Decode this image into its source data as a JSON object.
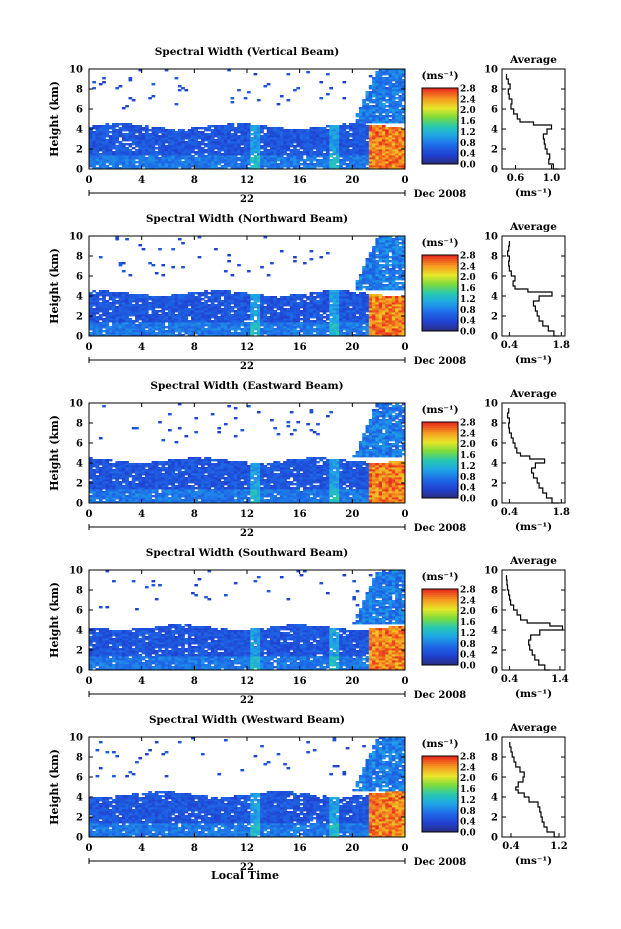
{
  "figure": {
    "xlabel": "Local Time",
    "colorbar_unit": "(ms⁻¹)",
    "colorbar_ticks": [
      "0.0",
      "0.4",
      "0.8",
      "1.2",
      "1.6",
      "2.0",
      "2.4",
      "2.8"
    ],
    "panels_heading": [
      "Spectral Width (Vertical Beam)",
      "Spectral Width (Northward Beam)",
      "Spectral Width (Eastward Beam)",
      "Spectral Width (Southward Beam)",
      "Spectral Width (Westward Beam)"
    ]
  },
  "chart_data": [
    {
      "type": "heatmap",
      "title": "Spectral Width (Vertical Beam)",
      "ylabel": "Height (km)",
      "xticks": [
        "0",
        "4",
        "8",
        "12",
        "16",
        "20",
        "0"
      ],
      "yticks": [
        "0",
        "2",
        "4",
        "6",
        "8",
        "10"
      ],
      "date_day": "22",
      "date_month": "Dec 2008",
      "xlim": [
        0,
        24
      ],
      "ylim": [
        0,
        10
      ],
      "cbar_range": [
        0.0,
        2.8
      ]
    },
    {
      "type": "line",
      "title": "Average",
      "ylabel": "",
      "xlabel": "(ms⁻¹)",
      "xticks": [
        "0.6",
        "1.0"
      ],
      "yticks": [
        "0",
        "2",
        "4",
        "6",
        "8",
        "10"
      ],
      "xlim": [
        0.45,
        1.15
      ],
      "ylim": [
        0,
        10
      ],
      "series": [
        {
          "x": [
            1.08,
            1.02,
            0.97,
            0.98,
            0.95,
            0.93,
            0.92,
            0.91,
            0.95,
            1.0,
            0.8,
            0.65,
            0.62,
            0.58,
            0.55,
            0.56,
            0.53,
            0.52,
            0.54,
            0.52,
            0.5
          ],
          "y": [
            0.0,
            0.5,
            1.0,
            1.5,
            2.0,
            2.5,
            3.0,
            3.5,
            4.0,
            4.4,
            4.7,
            5.0,
            5.5,
            6.0,
            6.5,
            7.0,
            7.5,
            8.0,
            8.5,
            9.0,
            9.5
          ]
        }
      ]
    },
    {
      "type": "heatmap",
      "title": "Spectral Width (Northward Beam)",
      "ylabel": "Height (km)",
      "xticks": [
        "0",
        "4",
        "8",
        "12",
        "16",
        "20",
        "0"
      ],
      "yticks": [
        "0",
        "2",
        "4",
        "6",
        "8",
        "10"
      ],
      "date_day": "22",
      "date_month": "Dec 2008",
      "xlim": [
        0,
        24
      ],
      "ylim": [
        0,
        10
      ],
      "cbar_range": [
        0.0,
        2.8
      ]
    },
    {
      "type": "line",
      "title": "Average",
      "ylabel": "",
      "xlabel": "(ms⁻¹)",
      "xticks": [
        "0.4",
        "1.8"
      ],
      "yticks": [
        "0",
        "2",
        "4",
        "6",
        "8",
        "10"
      ],
      "xlim": [
        0.2,
        1.9
      ],
      "ylim": [
        0,
        10
      ],
      "series": [
        {
          "x": [
            1.75,
            1.6,
            1.45,
            1.3,
            1.2,
            1.15,
            1.1,
            1.05,
            1.2,
            1.55,
            0.9,
            0.55,
            0.5,
            0.55,
            0.45,
            0.4,
            0.38,
            0.4,
            0.35,
            0.38,
            0.4
          ],
          "y": [
            0.0,
            0.5,
            1.0,
            1.5,
            2.0,
            2.5,
            3.0,
            3.5,
            4.0,
            4.4,
            4.7,
            5.0,
            5.5,
            6.0,
            6.5,
            7.0,
            7.5,
            8.0,
            8.5,
            9.0,
            9.5
          ]
        }
      ]
    },
    {
      "type": "heatmap",
      "title": "Spectral Width (Eastward Beam)",
      "ylabel": "Height (km)",
      "xticks": [
        "0",
        "4",
        "8",
        "12",
        "16",
        "20",
        "0"
      ],
      "yticks": [
        "0",
        "2",
        "4",
        "6",
        "8",
        "10"
      ],
      "date_day": "22",
      "date_month": "Dec 2008",
      "xlim": [
        0,
        24
      ],
      "ylim": [
        0,
        10
      ],
      "cbar_range": [
        0.0,
        2.8
      ]
    },
    {
      "type": "line",
      "title": "Average",
      "ylabel": "",
      "xlabel": "(ms⁻¹)",
      "xticks": [
        "0.4",
        "1.8"
      ],
      "yticks": [
        "0",
        "2",
        "4",
        "6",
        "8",
        "10"
      ],
      "xlim": [
        0.2,
        1.9
      ],
      "ylim": [
        0,
        10
      ],
      "series": [
        {
          "x": [
            1.75,
            1.55,
            1.4,
            1.3,
            1.2,
            1.15,
            1.05,
            1.0,
            1.1,
            1.35,
            0.95,
            0.7,
            0.6,
            0.55,
            0.5,
            0.45,
            0.4,
            0.38,
            0.4,
            0.35,
            0.38
          ],
          "y": [
            0.0,
            0.5,
            1.0,
            1.5,
            2.0,
            2.5,
            3.0,
            3.5,
            4.0,
            4.4,
            4.7,
            5.0,
            5.5,
            6.0,
            6.5,
            7.0,
            7.5,
            8.0,
            8.5,
            9.0,
            9.5
          ]
        }
      ]
    },
    {
      "type": "heatmap",
      "title": "Spectral Width (Southward Beam)",
      "ylabel": "Height (km)",
      "xticks": [
        "0",
        "4",
        "8",
        "12",
        "16",
        "20",
        "0"
      ],
      "yticks": [
        "0",
        "2",
        "4",
        "6",
        "8",
        "10"
      ],
      "date_day": "22",
      "date_month": "Dec 2008",
      "xlim": [
        0,
        24
      ],
      "ylim": [
        0,
        10
      ],
      "cbar_range": [
        0.0,
        2.8
      ]
    },
    {
      "type": "line",
      "title": "Average",
      "ylabel": "",
      "xlabel": "(ms⁻¹)",
      "xticks": [
        "0.4",
        "1.4"
      ],
      "yticks": [
        "0",
        "2",
        "4",
        "6",
        "8",
        "10"
      ],
      "xlim": [
        0.25,
        1.5
      ],
      "ylim": [
        0,
        10
      ],
      "series": [
        {
          "x": [
            1.2,
            1.1,
            0.98,
            0.9,
            0.85,
            0.8,
            0.78,
            0.82,
            1.0,
            1.45,
            1.2,
            0.75,
            0.62,
            0.55,
            0.48,
            0.42,
            0.4,
            0.38,
            0.36,
            0.35,
            0.34
          ],
          "y": [
            0.0,
            0.5,
            1.0,
            1.5,
            2.0,
            2.5,
            3.0,
            3.5,
            4.0,
            4.4,
            4.7,
            5.0,
            5.5,
            6.0,
            6.5,
            7.0,
            7.5,
            8.0,
            8.5,
            9.0,
            9.5
          ]
        }
      ]
    },
    {
      "type": "heatmap",
      "title": "Spectral Width (Westward Beam)",
      "ylabel": "Height (km)",
      "xticks": [
        "0",
        "4",
        "8",
        "12",
        "16",
        "20",
        "0"
      ],
      "yticks": [
        "0",
        "2",
        "4",
        "6",
        "8",
        "10"
      ],
      "date_day": "22",
      "date_month": "Dec 2008",
      "xlim": [
        0,
        24
      ],
      "ylim": [
        0,
        10
      ],
      "cbar_range": [
        0.0,
        2.8
      ]
    },
    {
      "type": "line",
      "title": "Average",
      "ylabel": "",
      "xlabel": "(ms⁻¹)",
      "xticks": [
        "0.4",
        "1.2"
      ],
      "yticks": [
        "0",
        "2",
        "4",
        "6",
        "8",
        "10"
      ],
      "xlim": [
        0.25,
        1.3
      ],
      "ylim": [
        0,
        10
      ],
      "series": [
        {
          "x": [
            1.2,
            1.12,
            1.0,
            0.95,
            0.92,
            0.9,
            0.88,
            0.85,
            0.7,
            0.62,
            0.52,
            0.48,
            0.52,
            0.6,
            0.62,
            0.55,
            0.48,
            0.45,
            0.42,
            0.4,
            0.38
          ],
          "y": [
            0.0,
            0.5,
            1.0,
            1.5,
            2.0,
            2.5,
            3.0,
            3.5,
            4.0,
            4.4,
            4.7,
            5.0,
            5.5,
            6.0,
            6.5,
            7.0,
            7.5,
            8.0,
            8.5,
            9.0,
            9.5
          ]
        }
      ]
    }
  ]
}
